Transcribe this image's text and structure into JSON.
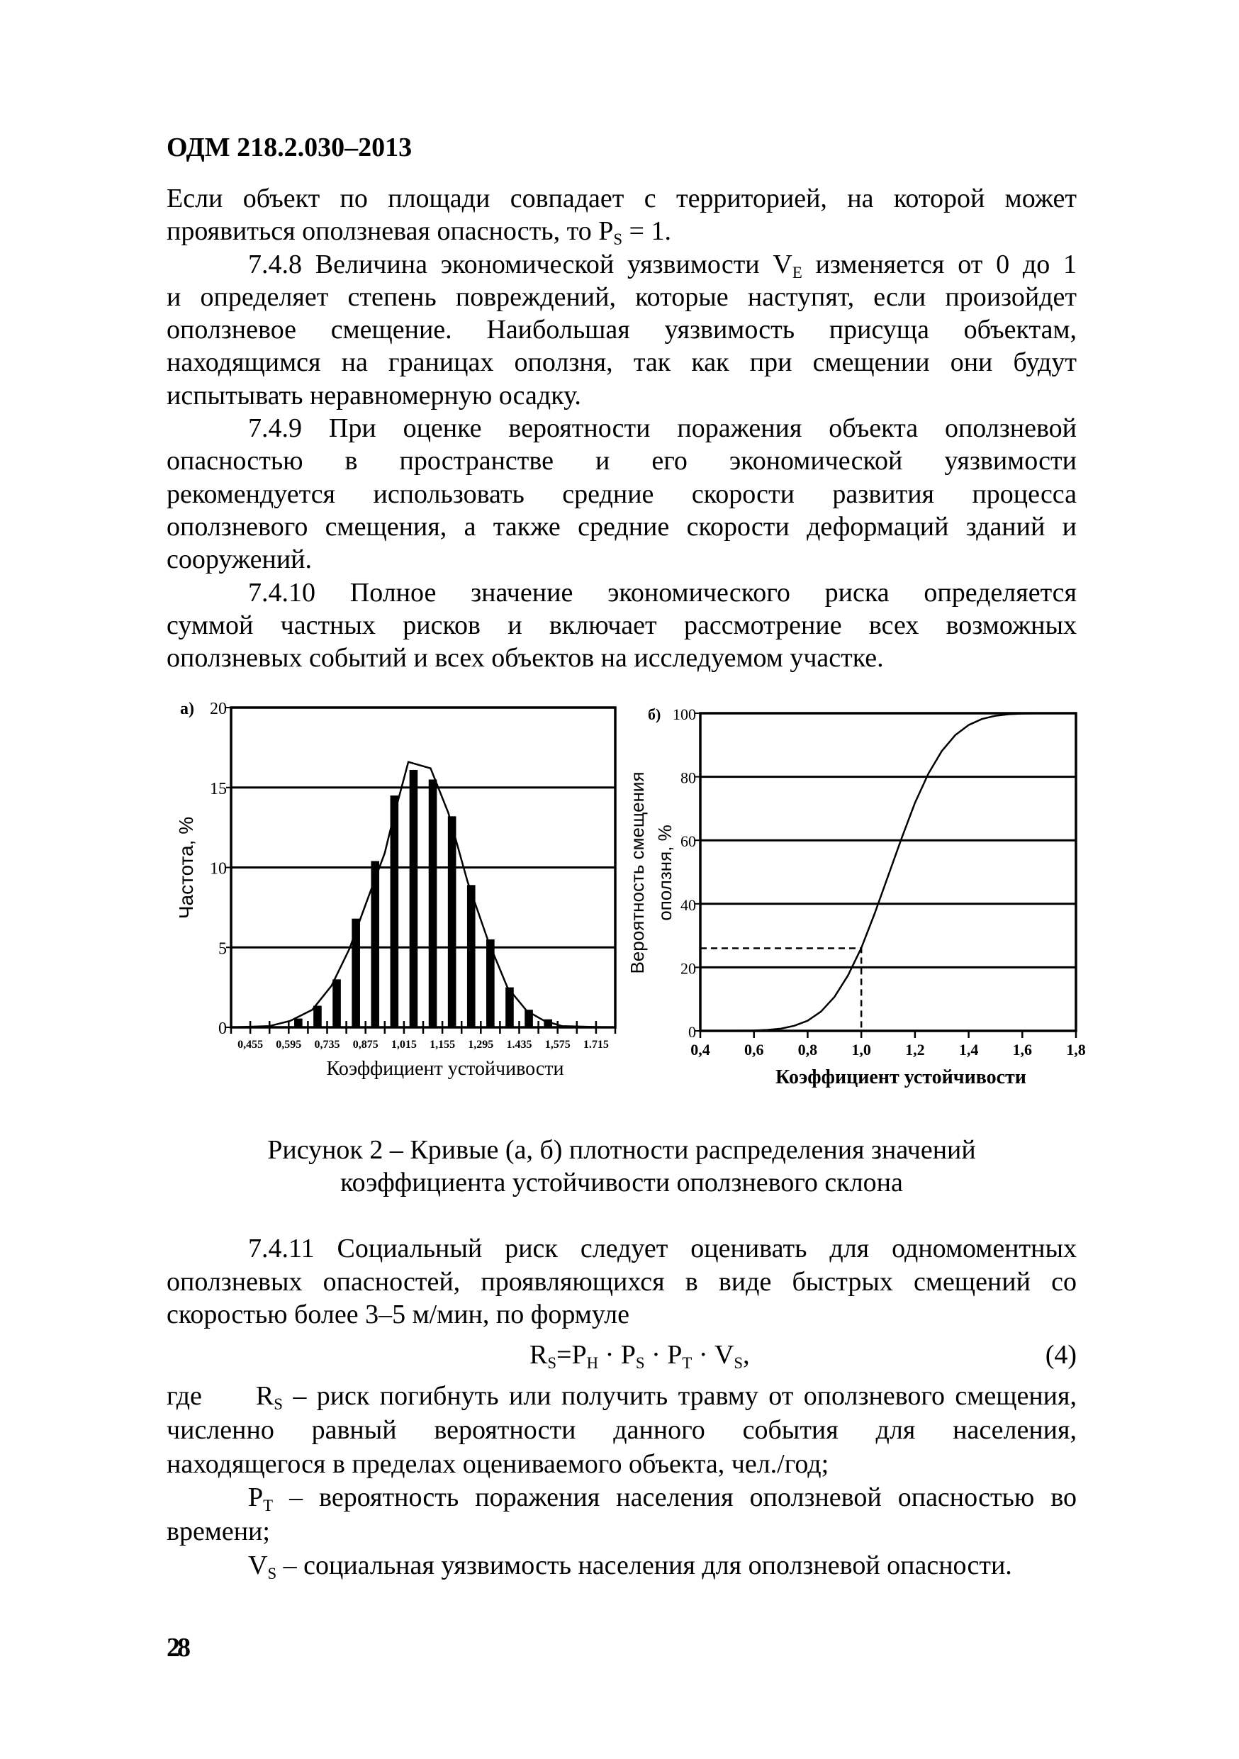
{
  "header": {
    "code": "ОДМ 218.2.030–2013"
  },
  "text_top": [
    [
      [
        {
          "t": "Если объект по площади совпадает с территорией, на которой может"
        }
      ],
      [
        {
          "t": "проявиться оползневая опасность, то P"
        },
        {
          "s": "S"
        },
        {
          "t": " = 1."
        }
      ]
    ],
    [
      [
        {
          "t": "7.4.8 Величина экономической уязвимости V"
        },
        {
          "s": "E"
        },
        {
          "t": " изменяется от 0 до 1"
        }
      ],
      [
        {
          "t": "и определяет степень повреждений, которые наступят, если произойдет"
        }
      ],
      [
        {
          "t": "оползневое смещение. Наибольшая уязвимость присуща объектам,"
        }
      ],
      [
        {
          "t": "находящимся на границах оползня, так как при смещении они будут"
        }
      ],
      [
        {
          "t": "испытывать неравномерную осадку."
        }
      ]
    ],
    [
      [
        {
          "t": "7.4.9 При оценке вероятности поражения объекта оползневой"
        }
      ],
      [
        {
          "t": "опасностью в пространстве и его экономической уязвимости"
        }
      ],
      [
        {
          "t": "рекомендуется использовать средние скорости развития процесса"
        }
      ],
      [
        {
          "t": "оползневого смещения, а также средние скорости деформаций зданий и"
        }
      ],
      [
        {
          "t": "сооружений."
        }
      ]
    ],
    [
      [
        {
          "t": "7.4.10 Полное значение экономического риска определяется"
        }
      ],
      [
        {
          "t": "суммой частных рисков и включает рассмотрение всех возможных"
        }
      ],
      [
        {
          "t": "оползневых событий и всех объектов на исследуемом участке."
        }
      ]
    ]
  ],
  "figure_caption": [
    [
      [
        {
          "t": "Рисунок 2 – Кривые (а, б) плотности распределения значений"
        }
      ],
      [
        {
          "t": "коэффициента устойчивости оползневого склона"
        }
      ]
    ]
  ],
  "text_mid": [
    [
      [
        {
          "t": "7.4.11 Социальный риск следует оценивать для одномоментных"
        }
      ],
      [
        {
          "t": "оползневых опасностей, проявляющихся в виде быстрых смещений со"
        }
      ],
      [
        {
          "t": "скоростью более 3–5 м/мин, по формуле"
        }
      ]
    ]
  ],
  "formula": {
    "expr": [
      [
        [
          {
            "t": "R"
          },
          {
            "s": "S"
          },
          {
            "t": "=P"
          },
          {
            "s": "Н"
          },
          {
            "t": " · P"
          },
          {
            "s": "S"
          },
          {
            "t": " · P"
          },
          {
            "s": "Т"
          },
          {
            "t": " · V"
          },
          {
            "s": "S"
          },
          {
            "t": ","
          }
        ]
      ]
    ],
    "number": "(4)"
  },
  "text_bot": [
    [
      [
        {
          "t": "где  R"
        },
        {
          "s": "S"
        },
        {
          "t": " – риск погибнуть или получить травму от оползневого смещения,"
        }
      ],
      [
        {
          "t": "численно равный вероятности данного события для населения,"
        }
      ],
      [
        {
          "t": "находящегося в пределах оцениваемого объекта, чел./год;"
        }
      ]
    ],
    [
      [
        {
          "t": "P"
        },
        {
          "s": "Т"
        },
        {
          "t": " – вероятность поражения населения оползневой опасностью во"
        }
      ],
      [
        {
          "t": "времени;"
        }
      ]
    ],
    [
      [
        {
          "t": "V"
        },
        {
          "s": "S"
        },
        {
          "t": " – социальная уязвимость населения для оползневой опасности."
        }
      ]
    ]
  ],
  "page_number": "28",
  "chart_data": [
    {
      "type": "bar",
      "panel_label": "а)",
      "ylabel": "Частота, %",
      "xlabel": "Коэффициент устойчивости",
      "xlim": [
        0.385,
        1.785
      ],
      "ylim": [
        0,
        20
      ],
      "minor_tick_step": 0.07,
      "yticks": [
        0,
        5,
        10,
        15,
        20
      ],
      "ytick_labels": [
        "0",
        "5",
        "10",
        "15",
        "20"
      ],
      "xticks": [
        0.455,
        0.595,
        0.735,
        0.875,
        1.015,
        1.155,
        1.295,
        1.435,
        1.575,
        1.715
      ],
      "xtick_labels": [
        "0,455",
        "0,595",
        "0,735",
        "0,875",
        "1,015",
        "1,155",
        "1,295",
        "1.435",
        "1,575",
        "1.715"
      ],
      "grid": {
        "horizontal": [
          5,
          10,
          15
        ]
      },
      "bars": {
        "x": [
          0.63,
          0.7,
          0.77,
          0.84,
          0.91,
          0.98,
          1.05,
          1.12,
          1.19,
          1.26,
          1.33,
          1.4,
          1.47,
          1.54
        ],
        "values": [
          0.55,
          1.35,
          3.0,
          6.8,
          10.4,
          14.5,
          16.1,
          15.5,
          13.2,
          8.9,
          5.5,
          2.5,
          1.1,
          0.5
        ],
        "color": "#000000"
      },
      "curve": {
        "x": [
          0.385,
          0.525,
          0.6,
          0.681,
          0.751,
          0.816,
          0.88,
          0.945,
          0.972,
          1.031,
          1.112,
          1.177,
          1.247,
          1.322,
          1.392,
          1.462,
          1.527,
          1.591,
          1.764
        ],
        "y": [
          0,
          0.08,
          0.4,
          1.1,
          2.6,
          4.9,
          7.9,
          10.9,
          12.8,
          16.6,
          16.2,
          13.4,
          9.1,
          5.4,
          2.5,
          1.04,
          0.4,
          0.08,
          0
        ]
      }
    },
    {
      "type": "line",
      "panel_label": "б)",
      "ylabel_lines": [
        "Вероятность смещения",
        "оползня, %"
      ],
      "xlabel": "Коэффициент устойчивости",
      "xlim": [
        0.4,
        1.8
      ],
      "ylim": [
        0,
        100
      ],
      "xticks": [
        0.4,
        0.6,
        0.8,
        1.0,
        1.2,
        1.4,
        1.6,
        1.8
      ],
      "xtick_labels": [
        "0,4",
        "0,6",
        "0,8",
        "1,0",
        "1,2",
        "1,4",
        "1,6",
        "1,8"
      ],
      "yticks": [
        0,
        20,
        40,
        60,
        80,
        100
      ],
      "ytick_labels": [
        "0",
        "20",
        "40",
        "60",
        "80",
        "100"
      ],
      "grid": {
        "horizontal": [
          20,
          40,
          60,
          80
        ]
      },
      "curve": {
        "x": [
          0.4,
          0.6,
          0.65,
          0.7,
          0.75,
          0.8,
          0.85,
          0.9,
          0.95,
          1.0,
          1.05,
          1.1,
          1.15,
          1.2,
          1.25,
          1.3,
          1.35,
          1.4,
          1.45,
          1.5,
          1.55,
          1.6,
          1.7,
          1.8
        ],
        "y": [
          0,
          0.1,
          0.3,
          0.7,
          1.6,
          3.2,
          6.1,
          10.7,
          17.4,
          26.1,
          37.0,
          48.8,
          60.6,
          71.8,
          81.0,
          88.1,
          93.1,
          96.3,
          98.2,
          99.2,
          99.7,
          99.9,
          100,
          100
        ]
      },
      "reference_dashed": {
        "x": 1.0,
        "y": 26
      }
    }
  ]
}
